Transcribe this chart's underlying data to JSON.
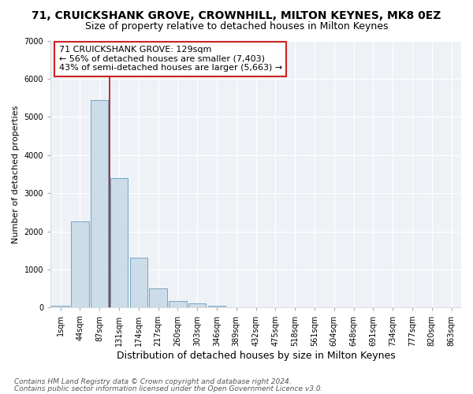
{
  "title": "71, CRUICKSHANK GROVE, CROWNHILL, MILTON KEYNES, MK8 0EZ",
  "subtitle": "Size of property relative to detached houses in Milton Keynes",
  "xlabel": "Distribution of detached houses by size in Milton Keynes",
  "ylabel": "Number of detached properties",
  "footer1": "Contains HM Land Registry data © Crown copyright and database right 2024.",
  "footer2": "Contains public sector information licensed under the Open Government Licence v3.0.",
  "bar_labels": [
    "1sqm",
    "44sqm",
    "87sqm",
    "131sqm",
    "174sqm",
    "217sqm",
    "260sqm",
    "303sqm",
    "346sqm",
    "389sqm",
    "432sqm",
    "475sqm",
    "518sqm",
    "561sqm",
    "604sqm",
    "648sqm",
    "691sqm",
    "734sqm",
    "777sqm",
    "820sqm",
    "863sqm"
  ],
  "bar_values": [
    60,
    2260,
    5450,
    3400,
    1300,
    500,
    175,
    105,
    60,
    0,
    0,
    0,
    0,
    0,
    0,
    0,
    0,
    0,
    0,
    0,
    0
  ],
  "bar_color": "#ccdce8",
  "bar_edgecolor": "#6699bb",
  "vline_x": 2.5,
  "vline_color": "#aa2222",
  "ylim": [
    0,
    7000
  ],
  "yticks": [
    0,
    1000,
    2000,
    3000,
    4000,
    5000,
    6000,
    7000
  ],
  "annotation_title": "71 CRUICKSHANK GROVE: 129sqm",
  "annotation_line1": "← 56% of detached houses are smaller (7,403)",
  "annotation_line2": "43% of semi-detached houses are larger (5,663) →",
  "bg_color": "#eef2f7",
  "grid_color": "#ffffff",
  "title_fontsize": 10,
  "subtitle_fontsize": 9,
  "xlabel_fontsize": 9,
  "ylabel_fontsize": 8,
  "tick_fontsize": 7,
  "footer_fontsize": 6.5,
  "ann_fontsize": 8
}
